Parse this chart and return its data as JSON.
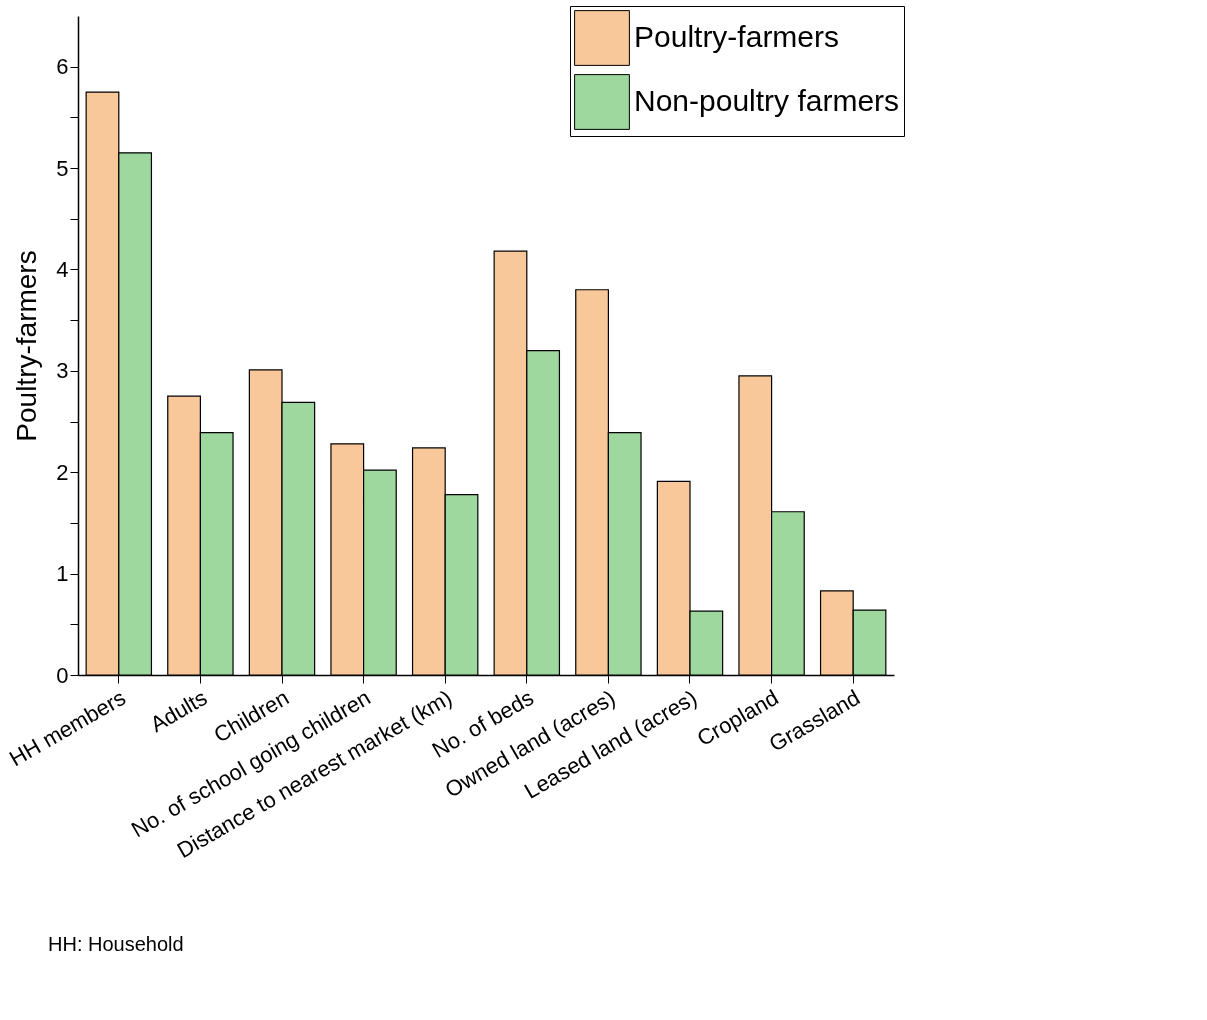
{
  "chart_data": {
    "type": "bar",
    "ylabel": "Poultry-farmers",
    "categories": [
      "HH members",
      "Adults",
      "Children",
      "No. of school going children",
      "Distance to nearest market (km)",
      "No. of beds",
      "Owned land (acres)",
      "Leased land (acres)",
      "Cropland",
      "Grassland"
    ],
    "series": [
      {
        "name": "Poultry-farmers",
        "color": "#f9c89a",
        "values": [
          5.75,
          2.75,
          3.01,
          2.28,
          2.24,
          4.18,
          3.8,
          1.91,
          2.95,
          0.83
        ]
      },
      {
        "name": "Non-poultry farmers",
        "color": "#9ed89e",
        "values": [
          5.15,
          2.39,
          2.69,
          2.02,
          1.78,
          3.2,
          2.39,
          0.63,
          1.61,
          0.64
        ]
      }
    ],
    "ylim": [
      0,
      6.5
    ],
    "yticks": [
      0,
      {
        "value": 0.5,
        "label": null
      },
      1,
      {
        "value": 1.5,
        "label": null
      },
      2,
      {
        "value": 2.5,
        "label": null
      },
      3,
      {
        "value": 3.5,
        "label": null
      },
      4,
      {
        "value": 4.5,
        "label": null
      },
      5,
      {
        "value": 5.5,
        "label": null
      },
      6
    ],
    "grid": false,
    "legend": "top right",
    "annotations": [
      "HH: Household"
    ]
  }
}
